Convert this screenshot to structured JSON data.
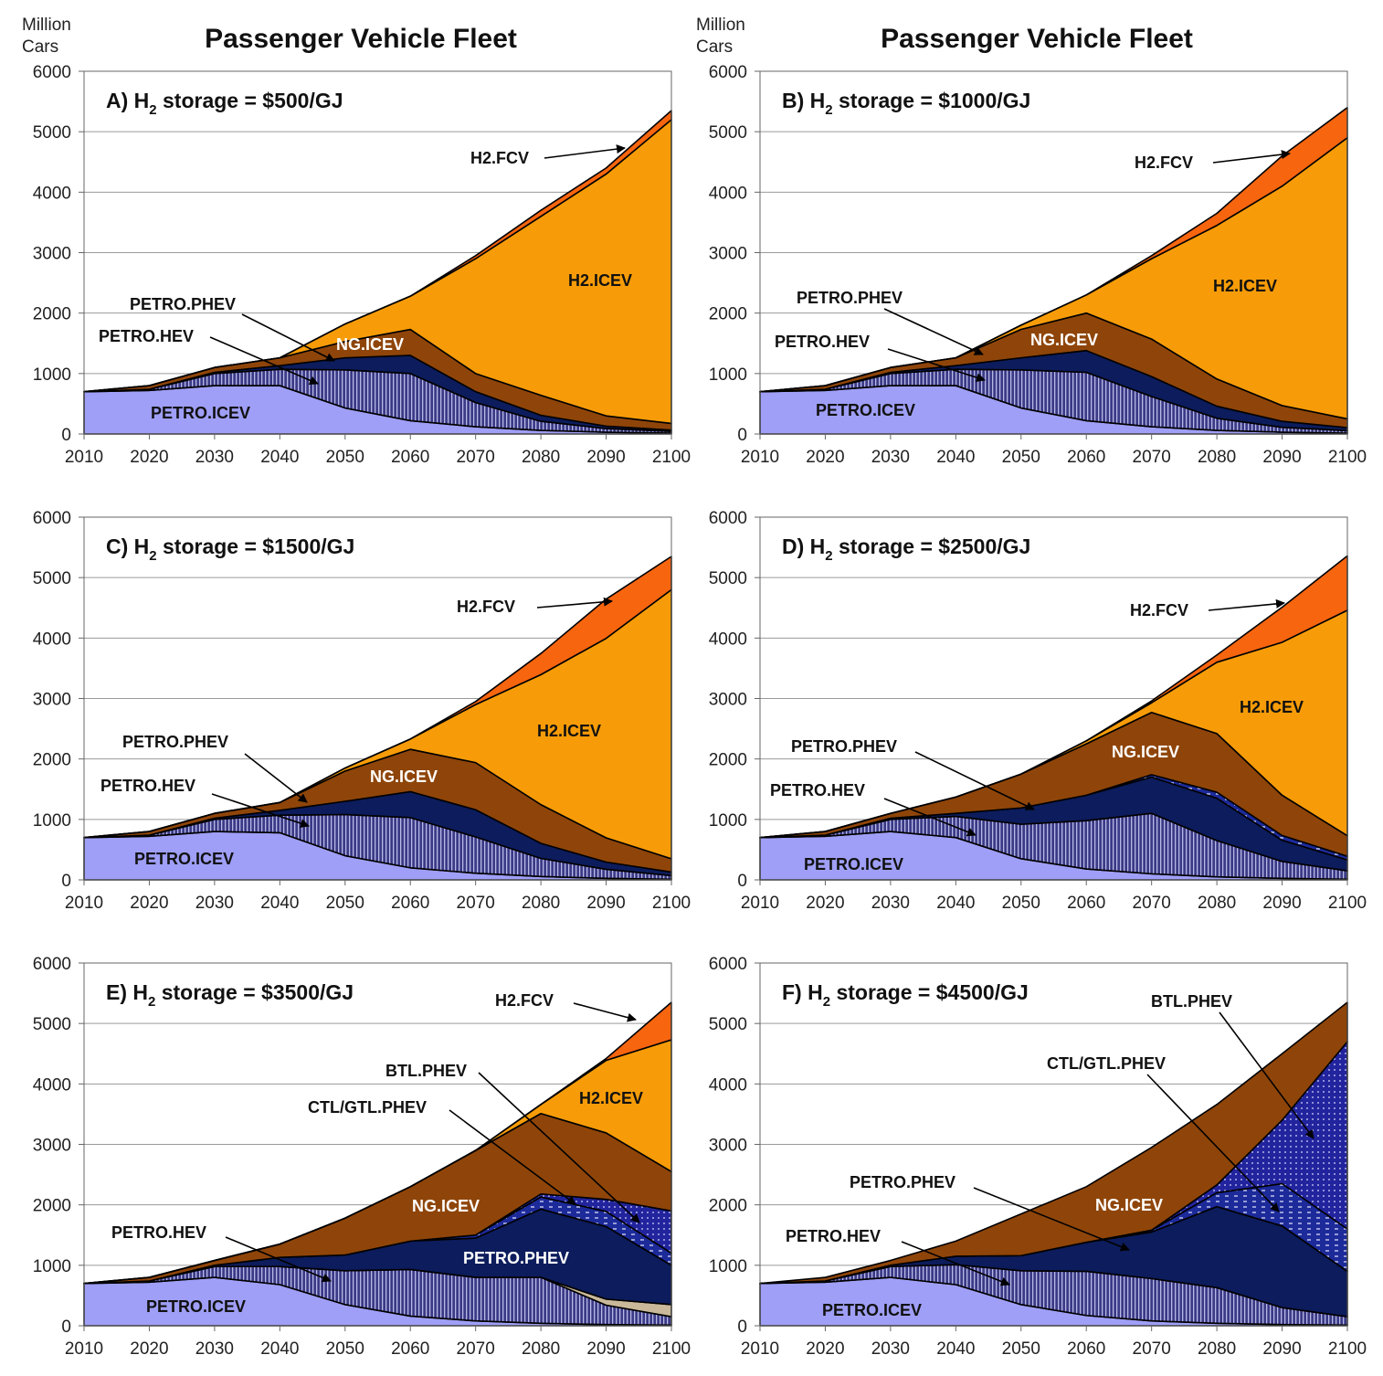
{
  "figure": {
    "title_left": "Passenger Vehicle Fleet",
    "title_right": "Passenger Vehicle Fleet",
    "unit_line1": "Million",
    "unit_line2": "Cars"
  },
  "colors": {
    "PETRO.ICEV": "#9f9ff7",
    "PETRO.HEV": "#3a3a86",
    "PETRO.PHEV": "#0c1c5c",
    "CTL/GTL.PHEV": "#1c2a9a",
    "BTL.PHEV": "#22249e",
    "NG.ICEV": "#8f4509",
    "H2.ICEV": "#f79c08",
    "H2.FCV": "#f7650f",
    "OTHER": "#c9b99a"
  },
  "chart_data": [
    {
      "id": "A",
      "type": "area",
      "stacked": true,
      "title_prefix": "A) H",
      "title_sub": "2",
      "title_suffix": " storage = $500/GJ",
      "xlabel": "",
      "ylabel": "Million Cars",
      "x": [
        2010,
        2020,
        2030,
        2040,
        2050,
        2060,
        2070,
        2080,
        2090,
        2100
      ],
      "xlim": [
        2010,
        2100
      ],
      "ylim": [
        0,
        6000
      ],
      "yticks": [
        0,
        1000,
        2000,
        3000,
        4000,
        5000,
        6000
      ],
      "series": [
        {
          "name": "PETRO.ICEV",
          "values": [
            700,
            720,
            800,
            800,
            430,
            220,
            120,
            60,
            30,
            15
          ]
        },
        {
          "name": "PETRO.HEV",
          "values": [
            0,
            20,
            200,
            270,
            630,
            780,
            400,
            150,
            60,
            30
          ]
        },
        {
          "name": "PETRO.PHEV",
          "values": [
            0,
            0,
            20,
            60,
            200,
            300,
            180,
            100,
            40,
            20
          ]
        },
        {
          "name": "NG.ICEV",
          "values": [
            0,
            60,
            80,
            130,
            270,
            430,
            300,
            330,
            170,
            110
          ]
        },
        {
          "name": "H2.ICEV",
          "values": [
            0,
            0,
            0,
            0,
            290,
            550,
            1900,
            2960,
            4000,
            5025
          ]
        },
        {
          "name": "H2.FCV",
          "values": [
            0,
            0,
            0,
            0,
            0,
            0,
            50,
            100,
            100,
            150
          ]
        }
      ],
      "labels": [
        {
          "text": "PETRO.ICEV",
          "series": "PETRO.ICEV"
        },
        {
          "text": "PETRO.HEV",
          "series": "PETRO.HEV"
        },
        {
          "text": "PETRO.PHEV",
          "series": "PETRO.PHEV"
        },
        {
          "text": "NG.ICEV",
          "series": "NG.ICEV"
        },
        {
          "text": "H2.ICEV",
          "series": "H2.ICEV"
        },
        {
          "text": "H2.FCV",
          "series": "H2.FCV"
        }
      ]
    },
    {
      "id": "B",
      "type": "area",
      "stacked": true,
      "title_prefix": "B) H",
      "title_sub": "2",
      "title_suffix": " storage = $1000/GJ",
      "xlabel": "",
      "ylabel": "Million Cars",
      "x": [
        2010,
        2020,
        2030,
        2040,
        2050,
        2060,
        2070,
        2080,
        2090,
        2100
      ],
      "xlim": [
        2010,
        2100
      ],
      "ylim": [
        0,
        6000
      ],
      "yticks": [
        0,
        1000,
        2000,
        3000,
        4000,
        5000,
        6000
      ],
      "series": [
        {
          "name": "PETRO.ICEV",
          "values": [
            700,
            720,
            800,
            800,
            430,
            220,
            120,
            60,
            30,
            15
          ]
        },
        {
          "name": "PETRO.HEV",
          "values": [
            0,
            20,
            200,
            270,
            630,
            800,
            500,
            200,
            80,
            40
          ]
        },
        {
          "name": "PETRO.PHEV",
          "values": [
            0,
            0,
            20,
            60,
            200,
            360,
            330,
            200,
            100,
            50
          ]
        },
        {
          "name": "NG.ICEV",
          "values": [
            0,
            60,
            80,
            130,
            470,
            620,
            620,
            450,
            260,
            145
          ]
        },
        {
          "name": "H2.ICEV",
          "values": [
            0,
            0,
            0,
            0,
            70,
            300,
            1330,
            2540,
            3630,
            4650
          ]
        },
        {
          "name": "H2.FCV",
          "values": [
            0,
            0,
            0,
            0,
            0,
            0,
            50,
            200,
            500,
            500
          ]
        }
      ],
      "labels": [
        {
          "text": "PETRO.ICEV",
          "series": "PETRO.ICEV"
        },
        {
          "text": "PETRO.HEV",
          "series": "PETRO.HEV"
        },
        {
          "text": "PETRO.PHEV",
          "series": "PETRO.PHEV"
        },
        {
          "text": "NG.ICEV",
          "series": "NG.ICEV"
        },
        {
          "text": "H2.ICEV",
          "series": "H2.ICEV"
        },
        {
          "text": "H2.FCV",
          "series": "H2.FCV"
        }
      ]
    },
    {
      "id": "C",
      "type": "area",
      "stacked": true,
      "title_prefix": "C) H",
      "title_sub": "2",
      "title_suffix": " storage = $1500/GJ",
      "xlabel": "",
      "ylabel": "Million Cars",
      "x": [
        2010,
        2020,
        2030,
        2040,
        2050,
        2060,
        2070,
        2080,
        2090,
        2100
      ],
      "xlim": [
        2010,
        2100
      ],
      "ylim": [
        0,
        6000
      ],
      "yticks": [
        0,
        1000,
        2000,
        3000,
        4000,
        5000,
        6000
      ],
      "series": [
        {
          "name": "PETRO.ICEV",
          "values": [
            700,
            720,
            800,
            780,
            400,
            200,
            110,
            55,
            25,
            10
          ]
        },
        {
          "name": "PETRO.HEV",
          "values": [
            0,
            20,
            200,
            290,
            680,
            830,
            600,
            300,
            150,
            60
          ]
        },
        {
          "name": "PETRO.PHEV",
          "values": [
            0,
            0,
            20,
            80,
            220,
            430,
            450,
            250,
            120,
            60
          ]
        },
        {
          "name": "NG.ICEV",
          "values": [
            0,
            60,
            80,
            130,
            500,
            700,
            780,
            640,
            400,
            220
          ]
        },
        {
          "name": "H2.ICEV",
          "values": [
            0,
            0,
            0,
            0,
            50,
            170,
            960,
            2150,
            3300,
            4450
          ]
        },
        {
          "name": "H2.FCV",
          "values": [
            0,
            0,
            0,
            0,
            0,
            0,
            50,
            350,
            650,
            550
          ]
        }
      ],
      "labels": [
        {
          "text": "PETRO.ICEV",
          "series": "PETRO.ICEV"
        },
        {
          "text": "PETRO.HEV",
          "series": "PETRO.HEV"
        },
        {
          "text": "PETRO.PHEV",
          "series": "PETRO.PHEV"
        },
        {
          "text": "NG.ICEV",
          "series": "NG.ICEV"
        },
        {
          "text": "H2.ICEV",
          "series": "H2.ICEV"
        },
        {
          "text": "H2.FCV",
          "series": "H2.FCV"
        }
      ]
    },
    {
      "id": "D",
      "type": "area",
      "stacked": true,
      "title_prefix": "D) H",
      "title_sub": "2",
      "title_suffix": " storage = $2500/GJ",
      "xlabel": "",
      "ylabel": "Million Cars",
      "x": [
        2010,
        2020,
        2030,
        2040,
        2050,
        2060,
        2070,
        2080,
        2090,
        2100
      ],
      "xlim": [
        2010,
        2100
      ],
      "ylim": [
        0,
        6000
      ],
      "yticks": [
        0,
        1000,
        2000,
        3000,
        4000,
        5000,
        6000
      ],
      "series": [
        {
          "name": "PETRO.ICEV",
          "values": [
            700,
            720,
            800,
            700,
            350,
            180,
            100,
            50,
            25,
            10
          ]
        },
        {
          "name": "PETRO.HEV",
          "values": [
            0,
            20,
            200,
            350,
            570,
            800,
            1000,
            600,
            280,
            140
          ]
        },
        {
          "name": "PETRO.PHEV",
          "values": [
            0,
            0,
            20,
            50,
            270,
            420,
            600,
            700,
            350,
            180
          ]
        },
        {
          "name": "CTL/GTL.PHEV",
          "values": [
            0,
            0,
            0,
            0,
            0,
            0,
            40,
            100,
            80,
            60
          ]
        },
        {
          "name": "NG.ICEV",
          "values": [
            0,
            60,
            80,
            270,
            560,
            850,
            1030,
            970,
            665,
            340
          ]
        },
        {
          "name": "H2.ICEV",
          "values": [
            0,
            0,
            0,
            0,
            0,
            50,
            160,
            1180,
            2530,
            3730
          ]
        },
        {
          "name": "H2.FCV",
          "values": [
            0,
            0,
            0,
            0,
            0,
            0,
            30,
            120,
            580,
            900
          ]
        }
      ],
      "labels": [
        {
          "text": "PETRO.ICEV",
          "series": "PETRO.ICEV"
        },
        {
          "text": "PETRO.HEV",
          "series": "PETRO.HEV"
        },
        {
          "text": "PETRO.PHEV",
          "series": "PETRO.PHEV"
        },
        {
          "text": "NG.ICEV",
          "series": "NG.ICEV"
        },
        {
          "text": "H2.ICEV",
          "series": "H2.ICEV"
        },
        {
          "text": "H2.FCV",
          "series": "H2.FCV"
        }
      ]
    },
    {
      "id": "E",
      "type": "area",
      "stacked": true,
      "title_prefix": "E) H",
      "title_sub": "2",
      "title_suffix": " storage = $3500/GJ",
      "xlabel": "",
      "ylabel": "Million Cars",
      "x": [
        2010,
        2020,
        2030,
        2040,
        2050,
        2060,
        2070,
        2080,
        2090,
        2100
      ],
      "xlim": [
        2010,
        2100
      ],
      "ylim": [
        0,
        6000
      ],
      "yticks": [
        0,
        1000,
        2000,
        3000,
        4000,
        5000,
        6000
      ],
      "series": [
        {
          "name": "PETRO.ICEV",
          "values": [
            700,
            720,
            800,
            680,
            350,
            160,
            80,
            40,
            20,
            10
          ]
        },
        {
          "name": "PETRO.HEV",
          "values": [
            0,
            20,
            180,
            300,
            560,
            770,
            720,
            760,
            320,
            140
          ]
        },
        {
          "name": "OTHER",
          "values": [
            0,
            0,
            0,
            0,
            0,
            0,
            0,
            0,
            100,
            200
          ]
        },
        {
          "name": "PETRO.PHEV",
          "values": [
            0,
            0,
            20,
            150,
            260,
            470,
            650,
            1130,
            1200,
            650
          ]
        },
        {
          "name": "CTL/GTL.PHEV",
          "values": [
            0,
            0,
            0,
            0,
            0,
            0,
            50,
            200,
            250,
            200
          ]
        },
        {
          "name": "BTL.PHEV",
          "values": [
            0,
            0,
            0,
            0,
            0,
            0,
            0,
            50,
            200,
            700
          ]
        },
        {
          "name": "NG.ICEV",
          "values": [
            0,
            60,
            80,
            220,
            610,
            900,
            1400,
            1330,
            1100,
            650
          ]
        },
        {
          "name": "H2.ICEV",
          "values": [
            0,
            0,
            0,
            0,
            0,
            0,
            0,
            150,
            1200,
            2180
          ]
        },
        {
          "name": "H2.FCV",
          "values": [
            0,
            0,
            0,
            0,
            0,
            0,
            0,
            0,
            30,
            620
          ]
        }
      ],
      "labels": [
        {
          "text": "PETRO.ICEV",
          "series": "PETRO.ICEV"
        },
        {
          "text": "PETRO.HEV",
          "series": "PETRO.HEV"
        },
        {
          "text": "PETRO.PHEV",
          "series": "PETRO.PHEV"
        },
        {
          "text": "NG.ICEV",
          "series": "NG.ICEV"
        },
        {
          "text": "H2.ICEV",
          "series": "H2.ICEV"
        },
        {
          "text": "H2.FCV",
          "series": "H2.FCV"
        },
        {
          "text": "BTL.PHEV",
          "series": "BTL.PHEV"
        },
        {
          "text": "CTL/GTL.PHEV",
          "series": "CTL/GTL.PHEV"
        }
      ]
    },
    {
      "id": "F",
      "type": "area",
      "stacked": true,
      "title_prefix": "F) H",
      "title_sub": "2",
      "title_suffix": " storage = $4500/GJ",
      "xlabel": "",
      "ylabel": "Million Cars",
      "x": [
        2010,
        2020,
        2030,
        2040,
        2050,
        2060,
        2070,
        2080,
        2090,
        2100
      ],
      "xlim": [
        2010,
        2100
      ],
      "ylim": [
        0,
        6000
      ],
      "yticks": [
        0,
        1000,
        2000,
        3000,
        4000,
        5000,
        6000
      ],
      "series": [
        {
          "name": "PETRO.ICEV",
          "values": [
            700,
            720,
            800,
            680,
            350,
            170,
            80,
            40,
            20,
            10
          ]
        },
        {
          "name": "PETRO.HEV",
          "values": [
            0,
            20,
            180,
            330,
            560,
            730,
            700,
            590,
            280,
            140
          ]
        },
        {
          "name": "PETRO.PHEV",
          "values": [
            0,
            0,
            20,
            140,
            250,
            480,
            770,
            1340,
            1350,
            750
          ]
        },
        {
          "name": "CTL/GTL.PHEV",
          "values": [
            0,
            0,
            0,
            0,
            0,
            0,
            30,
            230,
            700,
            700
          ]
        },
        {
          "name": "BTL.PHEV",
          "values": [
            0,
            0,
            0,
            0,
            0,
            0,
            0,
            130,
            1050,
            3100
          ]
        },
        {
          "name": "NG.ICEV",
          "values": [
            0,
            60,
            80,
            250,
            690,
            920,
            1370,
            1330,
            1100,
            650
          ]
        }
      ],
      "labels": [
        {
          "text": "PETRO.ICEV",
          "series": "PETRO.ICEV"
        },
        {
          "text": "PETRO.HEV",
          "series": "PETRO.HEV"
        },
        {
          "text": "PETRO.PHEV",
          "series": "PETRO.PHEV"
        },
        {
          "text": "NG.ICEV",
          "series": "NG.ICEV"
        },
        {
          "text": "CTL/GTL.PHEV",
          "series": "CTL/GTL.PHEV"
        },
        {
          "text": "BTL.PHEV",
          "series": "BTL.PHEV"
        }
      ]
    }
  ]
}
